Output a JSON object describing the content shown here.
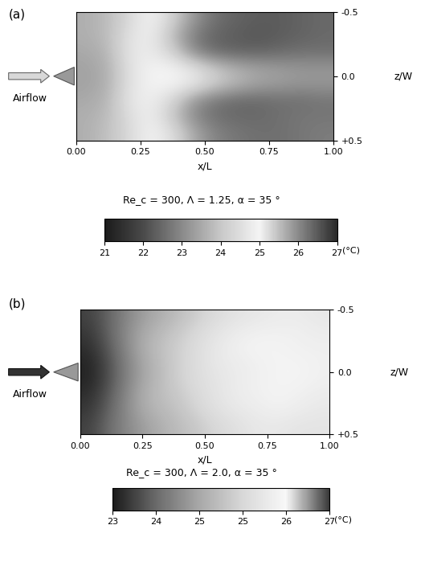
{
  "chart_data": [
    {
      "type": "heatmap",
      "title": "(a)",
      "subtitle": "Re_c = 300, Λ = 1.25, α = 35 °",
      "x_label": "x/L",
      "y_label": "z/W",
      "annotations": [
        "Airflow"
      ],
      "xlim": [
        0,
        1
      ],
      "ylim": [
        0.5,
        -0.5
      ],
      "xticks": [
        {
          "value": 0,
          "label": "0.00"
        },
        {
          "value": 0.25,
          "label": "0.25"
        },
        {
          "value": 0.5,
          "label": "0.50"
        },
        {
          "value": 0.75,
          "label": "0.75"
        },
        {
          "value": 1,
          "label": "1.00"
        }
      ],
      "yticks": [
        {
          "value": -0.5,
          "label": "-0.5"
        },
        {
          "value": 0,
          "label": "0.0"
        },
        {
          "value": 0.5,
          "label": "+0.5"
        }
      ],
      "cells": [
        [
          23.6,
          23.8,
          24.4,
          25.0,
          24.2,
          23.2,
          22.6,
          22.4,
          22.3,
          22.3,
          22.4,
          22.5
        ],
        [
          23.6,
          23.8,
          24.6,
          24.9,
          23.8,
          22.8,
          22.4,
          22.3,
          22.2,
          22.3,
          22.4,
          22.5
        ],
        [
          23.5,
          23.7,
          24.7,
          24.8,
          24.2,
          23.0,
          22.5,
          22.4,
          22.4,
          22.5,
          22.6,
          22.6
        ],
        [
          23.4,
          23.6,
          24.6,
          25.0,
          25.0,
          24.6,
          24.0,
          23.6,
          23.4,
          23.3,
          23.2,
          23.2
        ],
        [
          23.4,
          23.6,
          24.6,
          25.0,
          25.0,
          24.7,
          24.1,
          23.7,
          23.4,
          23.3,
          23.2,
          23.2
        ],
        [
          23.5,
          23.7,
          24.7,
          24.9,
          24.3,
          23.2,
          22.7,
          22.5,
          22.5,
          22.6,
          22.6,
          22.7
        ],
        [
          23.6,
          23.8,
          24.5,
          24.9,
          24.0,
          23.0,
          22.6,
          22.5,
          22.5,
          22.6,
          22.7,
          22.7
        ],
        [
          23.6,
          23.9,
          24.4,
          25.0,
          24.5,
          23.5,
          22.9,
          22.7,
          22.6,
          22.6,
          22.7,
          22.8
        ]
      ],
      "colorbar": {
        "range": [
          21,
          27
        ],
        "ticks": [
          21,
          22,
          23,
          24,
          25,
          26,
          27
        ],
        "label": "(°C)"
      }
    },
    {
      "type": "heatmap",
      "title": "(b)",
      "subtitle": "Re_c = 300, Λ = 2.0, α = 35 °",
      "x_label": "x/L",
      "y_label": "z/W",
      "annotations": [
        "Airflow"
      ],
      "xlim": [
        0,
        1
      ],
      "ylim": [
        0.5,
        -0.5
      ],
      "xticks": [
        {
          "value": 0,
          "label": "0.00"
        },
        {
          "value": 0.25,
          "label": "0.25"
        },
        {
          "value": 0.5,
          "label": "0.50"
        },
        {
          "value": 0.75,
          "label": "0.75"
        },
        {
          "value": 1,
          "label": "1.00"
        }
      ],
      "yticks": [
        {
          "value": -0.5,
          "label": "-0.5"
        },
        {
          "value": 0,
          "label": "0.0"
        },
        {
          "value": 0.5,
          "label": "+0.5"
        }
      ],
      "cells": [
        [
          23.4,
          23.8,
          24.3,
          24.6,
          24.9,
          25.2,
          25.5,
          25.7,
          25.8,
          25.9,
          25.9,
          25.8
        ],
        [
          23.3,
          23.8,
          24.4,
          24.8,
          25.1,
          25.4,
          25.7,
          25.9,
          26.0,
          26.0,
          26.0,
          25.9
        ],
        [
          23.2,
          23.7,
          24.4,
          24.9,
          25.2,
          25.5,
          25.8,
          26.0,
          26.1,
          26.1,
          26.0,
          26.0
        ],
        [
          23.1,
          23.6,
          24.3,
          24.8,
          25.2,
          25.5,
          25.8,
          25.9,
          26.0,
          26.1,
          26.1,
          26.0
        ],
        [
          23.1,
          23.6,
          24.3,
          24.8,
          25.2,
          25.5,
          25.7,
          25.9,
          26.0,
          26.1,
          26.1,
          26.0
        ],
        [
          23.2,
          23.7,
          24.4,
          24.9,
          25.1,
          25.4,
          25.7,
          25.9,
          26.0,
          26.1,
          26.0,
          25.9
        ],
        [
          23.3,
          23.8,
          24.4,
          24.8,
          25.0,
          25.3,
          25.6,
          25.8,
          25.9,
          26.0,
          25.9,
          25.8
        ],
        [
          23.4,
          23.9,
          24.3,
          24.6,
          24.9,
          25.1,
          25.4,
          25.6,
          25.8,
          25.8,
          25.7,
          25.7
        ]
      ],
      "colorbar": {
        "range": [
          23,
          27
        ],
        "ticks": [
          23,
          {
            "value": 23.8,
            "label": "24"
          },
          {
            "value": 24.6,
            "label": "25"
          },
          {
            "value": 25.4,
            "label": "25"
          },
          {
            "value": 26.2,
            "label": "26"
          },
          27
        ],
        "label": "(°C)"
      }
    }
  ]
}
